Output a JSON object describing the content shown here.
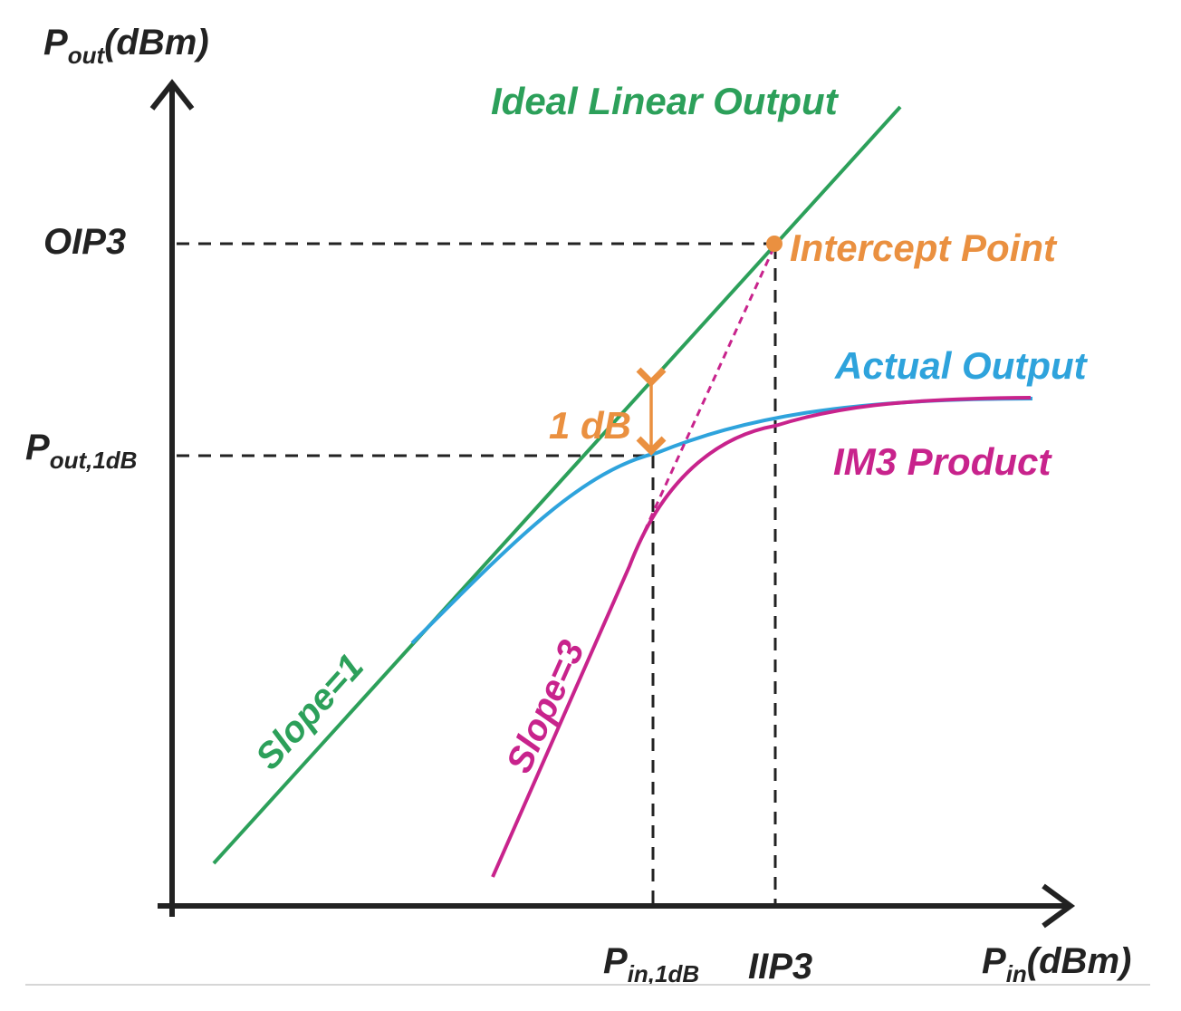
{
  "axes": {
    "y_title_main": "P",
    "y_title_sub": "out",
    "y_title_unit": "(dBm)",
    "x_title_main": "P",
    "x_title_sub": "in",
    "x_title_unit": "(dBm)"
  },
  "y_ticks": {
    "oip3": "OIP3",
    "pout1db_main": "P",
    "pout1db_sub": "out,1dB"
  },
  "x_ticks": {
    "pin1db_main": "P",
    "pin1db_sub": "in,1dB",
    "iip3": "IIP3"
  },
  "curves": {
    "ideal": "Ideal Linear Output",
    "actual": "Actual Output",
    "im3": "IM3 Product",
    "intercept": "Intercept Point",
    "compression": "1 dB",
    "slope1": "Slope=1",
    "slope3": "Slope=3"
  },
  "colors": {
    "ideal": "#2ca05a",
    "actual": "#2ea3dc",
    "im3": "#c8238c",
    "intercept": "#ea9040",
    "axis": "#222222"
  }
}
